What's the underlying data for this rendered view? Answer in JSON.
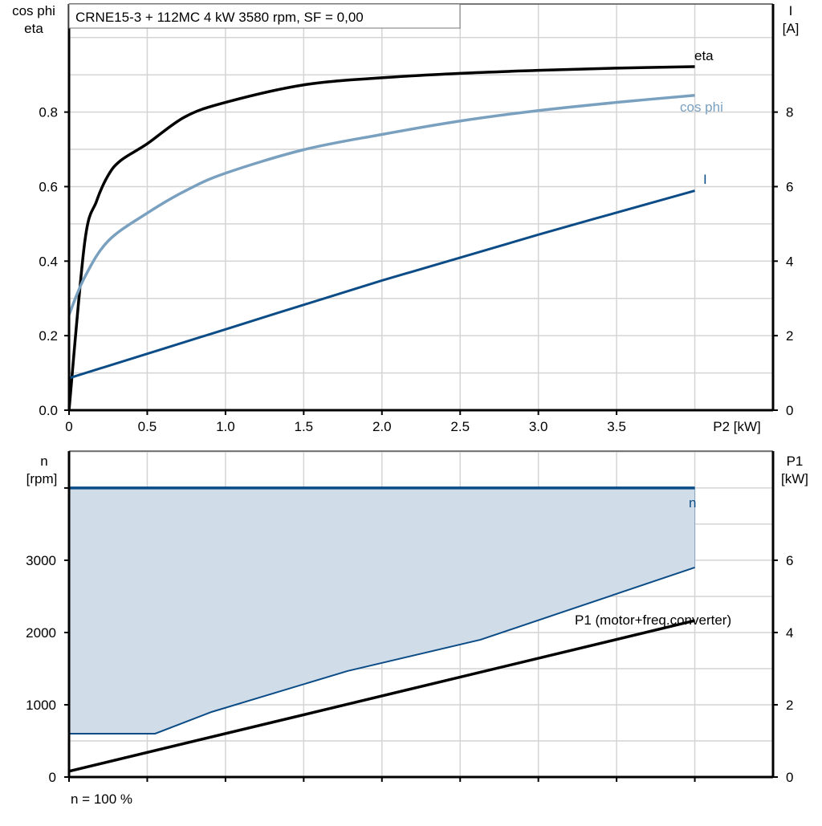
{
  "title": "CRNE15-3 + 112MC   4 kW   3580 rpm, SF = 0,00",
  "footer": "n = 100 %",
  "colors": {
    "eta": "#000000",
    "cos_phi": "#7aa0c0",
    "I": "#0b4c86",
    "n": "#0b4c86",
    "n_fill": "#d0dce8",
    "P1": "#000000",
    "grid": "#d4d4d4"
  },
  "chart_data": [
    {
      "type": "line",
      "xlabel": "P2 [kW]",
      "ylabel_left": [
        "cos phi",
        "eta"
      ],
      "ylabel_right": [
        "I",
        "[A]"
      ],
      "xlim": [
        0,
        4.5
      ],
      "ylim_left": [
        0,
        1.09
      ],
      "ylim_right": [
        0,
        10.9
      ],
      "x_ticks": [
        "0",
        "0.5",
        "1.0",
        "1.5",
        "2.0",
        "2.5",
        "3.0",
        "3.5"
      ],
      "y_ticks_left": [
        "0.0",
        "0.2",
        "0.4",
        "0.6",
        "0.8"
      ],
      "y_ticks_right": [
        "0",
        "2",
        "4",
        "6",
        "8"
      ],
      "grid": true,
      "series": [
        {
          "name": "eta",
          "axis": "left",
          "x": [
            0,
            0.1,
            0.175,
            0.25,
            0.33,
            0.5,
            0.74,
            1.0,
            1.5,
            2.0,
            2.5,
            3.0,
            3.5,
            4.0
          ],
          "y": [
            0,
            0.45,
            0.56,
            0.63,
            0.67,
            0.715,
            0.787,
            0.826,
            0.873,
            0.892,
            0.904,
            0.912,
            0.918,
            0.922
          ]
        },
        {
          "name": "cos phi",
          "axis": "left",
          "x": [
            0,
            0.1,
            0.25,
            0.5,
            0.75,
            1.0,
            1.5,
            2.0,
            2.5,
            3.0,
            3.5,
            4.0
          ],
          "y": [
            0.256,
            0.357,
            0.454,
            0.529,
            0.59,
            0.636,
            0.699,
            0.74,
            0.776,
            0.804,
            0.826,
            0.845
          ]
        },
        {
          "name": "I",
          "axis": "right",
          "x": [
            0,
            1.0,
            2.0,
            3.0,
            4.0
          ],
          "y": [
            0.86,
            2.17,
            3.48,
            4.71,
            5.89
          ]
        }
      ]
    },
    {
      "type": "area",
      "xlim": [
        0,
        4.5
      ],
      "ylabel_left": [
        "n",
        "[rpm]"
      ],
      "ylabel_right": [
        "P1",
        "[kW]"
      ],
      "ylim_left": [
        0,
        4510
      ],
      "ylim_right": [
        0,
        9.02
      ],
      "y_ticks_left": [
        "0",
        "1000",
        "2000",
        "3000"
      ],
      "y_ticks_right": [
        "0",
        "2",
        "4",
        "6"
      ],
      "grid": true,
      "series": [
        {
          "name": "n",
          "axis": "left",
          "x": [
            0,
            4.0
          ],
          "y": [
            4000,
            4000
          ]
        },
        {
          "axis": "left",
          "x": [
            0,
            0.55,
            0.91,
            1.78,
            2.63,
            4.0
          ],
          "y": [
            600,
            600,
            900,
            1467,
            1900,
            2900
          ]
        },
        {
          "name": "P1 (motor+freq.converter)",
          "axis": "right",
          "x": [
            0,
            4.0
          ],
          "y": [
            0.16,
            4.33
          ]
        }
      ]
    }
  ]
}
